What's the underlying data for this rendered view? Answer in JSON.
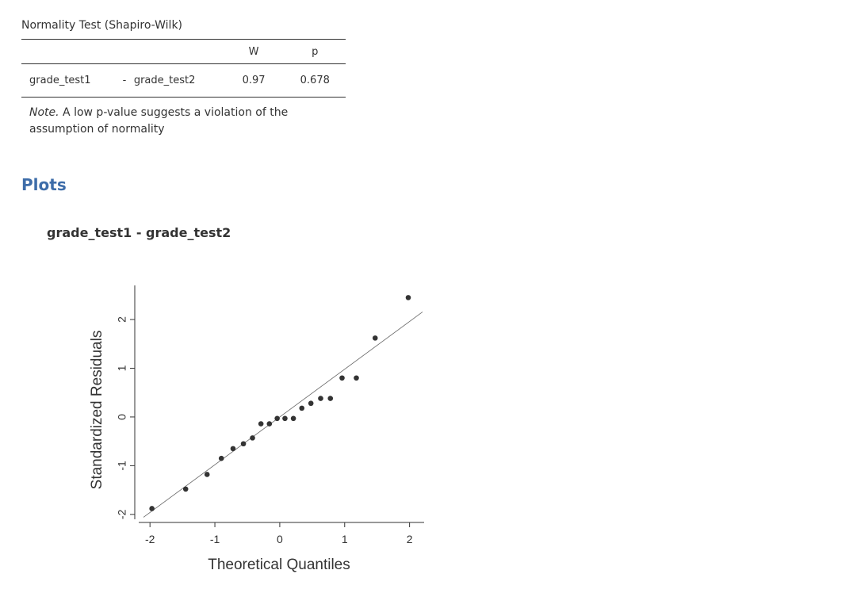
{
  "table": {
    "title": "Normality Test (Shapiro-Wilk)",
    "headers": [
      "",
      "",
      "",
      "W",
      "p"
    ],
    "rows": [
      {
        "var1": "grade_test1",
        "sep": "-",
        "var2": "grade_test2",
        "W": "0.97",
        "p": "0.678"
      }
    ],
    "note_label": "Note.",
    "note_text": " A low p-value suggests a violation of the assumption of normality"
  },
  "plots": {
    "section_title": "Plots",
    "plot_title": "grade_test1 - grade_test2"
  },
  "chart_data": {
    "type": "scatter",
    "xlabel": "Theoretical Quantiles",
    "ylabel": "Standardized Residuals",
    "xlim": [
      -2.1,
      2.2
    ],
    "ylim": [
      -2.1,
      2.7
    ],
    "xticks": [
      -2,
      -1,
      0,
      1,
      2
    ],
    "yticks": [
      -2,
      -1,
      0,
      1,
      2
    ],
    "points": [
      {
        "x": -1.97,
        "y": -1.88
      },
      {
        "x": -1.45,
        "y": -1.48
      },
      {
        "x": -1.12,
        "y": -1.18
      },
      {
        "x": -0.9,
        "y": -0.85
      },
      {
        "x": -0.72,
        "y": -0.65
      },
      {
        "x": -0.56,
        "y": -0.55
      },
      {
        "x": -0.42,
        "y": -0.43
      },
      {
        "x": -0.29,
        "y": -0.14
      },
      {
        "x": -0.16,
        "y": -0.14
      },
      {
        "x": -0.04,
        "y": -0.03
      },
      {
        "x": 0.08,
        "y": -0.03
      },
      {
        "x": 0.21,
        "y": -0.03
      },
      {
        "x": 0.34,
        "y": 0.18
      },
      {
        "x": 0.48,
        "y": 0.28
      },
      {
        "x": 0.63,
        "y": 0.38
      },
      {
        "x": 0.78,
        "y": 0.38
      },
      {
        "x": 0.96,
        "y": 0.8
      },
      {
        "x": 1.18,
        "y": 0.8
      },
      {
        "x": 1.47,
        "y": 1.62
      },
      {
        "x": 1.98,
        "y": 2.45
      }
    ],
    "reference_line": {
      "slope": 0.98,
      "intercept": 0.0
    },
    "point_color": "#333333",
    "line_color": "#666666"
  }
}
